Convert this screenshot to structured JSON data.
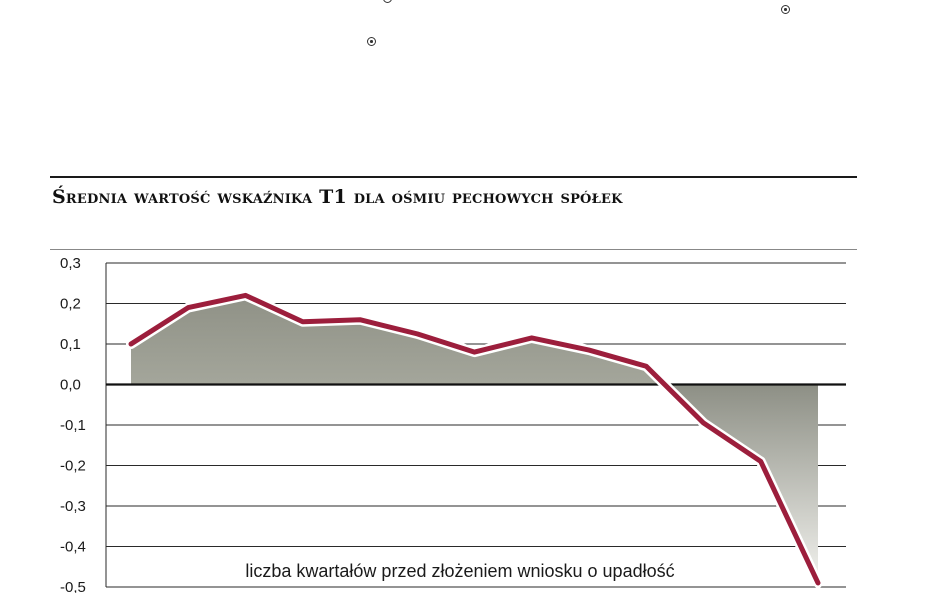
{
  "chart_data": {
    "type": "area",
    "title": "Średnia wartość wskaźnika T1 dla ośmiu pechowych spółek",
    "xlabel": "liczba kwartałów przed złożeniem wniosku o upadłość",
    "ylabel": "",
    "ylim": [
      -0.5,
      0.3
    ],
    "yticks": [
      "0,3",
      "0,2",
      "0,1",
      "0,0",
      "-0,1",
      "-0,2",
      "-0,3",
      "-0,4",
      "-0,5"
    ],
    "ytick_values": [
      0.3,
      0.2,
      0.1,
      0.0,
      -0.1,
      -0.2,
      -0.3,
      -0.4,
      -0.5
    ],
    "grid": true,
    "series": [
      {
        "values": [
          0.1,
          0.19,
          0.22,
          0.155,
          0.16,
          0.125,
          0.08,
          0.115,
          0.085,
          0.045,
          -0.095,
          -0.19,
          -0.49
        ]
      }
    ],
    "colors": {
      "line": "#9c1e3c",
      "line_halo": "#ffffff",
      "area_top": "#8f9186",
      "area_bottom": "#e6e6e1",
      "grid": "#2a2a2a"
    }
  }
}
